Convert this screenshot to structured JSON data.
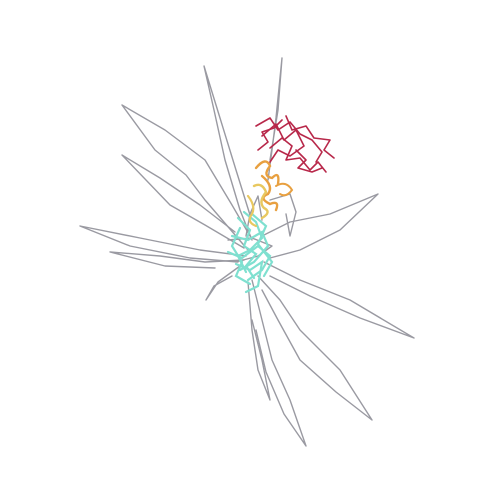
{
  "image": {
    "kind": "molecular-structure-render",
    "background": "#ffffff",
    "style": "ribbon / backbone trace with disordered loops"
  },
  "colors": {
    "loops": "#9a9aa2",
    "domain_core": "#7fe0d0",
    "helix_orange": "#e8a040",
    "helix_yellow": "#e8c860",
    "coil_red": "#b8284a"
  }
}
